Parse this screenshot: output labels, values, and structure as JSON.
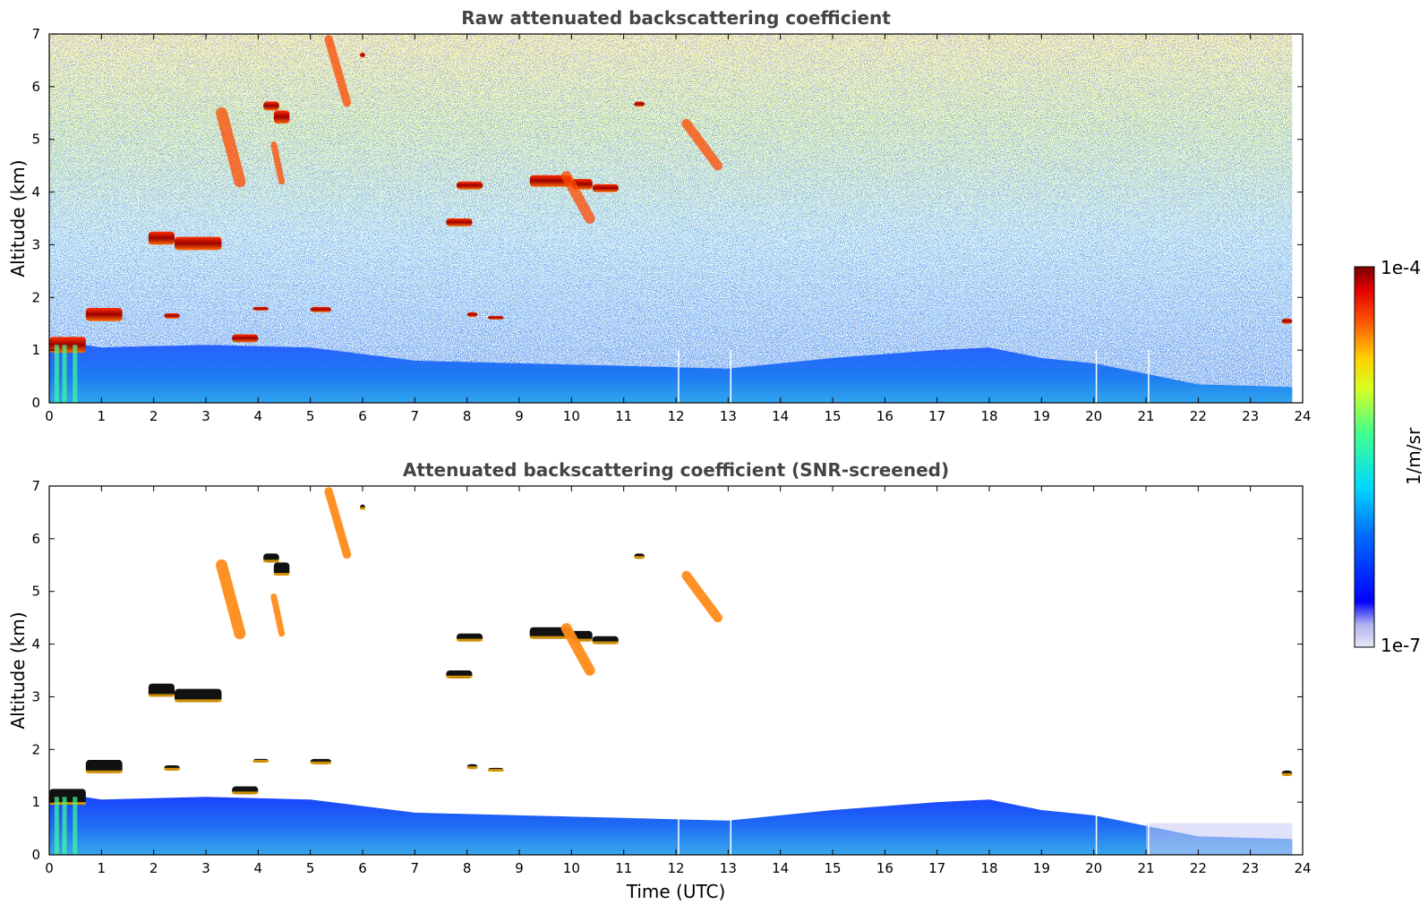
{
  "chart_data": [
    {
      "type": "heatmap",
      "title": "Raw attenuated backscattering coefficient",
      "xlabel": "",
      "ylabel": "Altitude (km)",
      "xlim": [
        0,
        24
      ],
      "ylim": [
        0,
        7
      ],
      "xticks": [
        "0",
        "1",
        "2",
        "3",
        "4",
        "5",
        "6",
        "7",
        "8",
        "9",
        "10",
        "11",
        "12",
        "13",
        "14",
        "15",
        "16",
        "17",
        "18",
        "19",
        "20",
        "21",
        "22",
        "23",
        "24"
      ],
      "yticks": [
        "0",
        "1",
        "2",
        "3",
        "4",
        "5",
        "6",
        "7"
      ],
      "screened": false,
      "data_end_hour": 23.8,
      "gaps_hours": [
        12.05,
        13.05,
        20.05,
        21.05
      ],
      "boundary_layer_top_km": [
        {
          "t": 0,
          "h": 1.2
        },
        {
          "t": 1,
          "h": 1.05
        },
        {
          "t": 3,
          "h": 1.1
        },
        {
          "t": 5,
          "h": 1.05
        },
        {
          "t": 7,
          "h": 0.8
        },
        {
          "t": 9,
          "h": 0.75
        },
        {
          "t": 11,
          "h": 0.7
        },
        {
          "t": 13,
          "h": 0.65
        },
        {
          "t": 15,
          "h": 0.85
        },
        {
          "t": 17,
          "h": 1.0
        },
        {
          "t": 18,
          "h": 1.05
        },
        {
          "t": 19,
          "h": 0.85
        },
        {
          "t": 20,
          "h": 0.75
        },
        {
          "t": 21,
          "h": 0.55
        },
        {
          "t": 22,
          "h": 0.35
        },
        {
          "t": 23.8,
          "h": 0.3
        }
      ],
      "clouds": [
        {
          "t0": 0.0,
          "t1": 0.7,
          "h0": 0.95,
          "h1": 1.25
        },
        {
          "t0": 0.7,
          "t1": 1.4,
          "h0": 1.55,
          "h1": 1.8
        },
        {
          "t0": 2.2,
          "t1": 2.5,
          "h0": 1.6,
          "h1": 1.7
        },
        {
          "t0": 3.5,
          "t1": 4.0,
          "h0": 1.15,
          "h1": 1.3
        },
        {
          "t0": 3.9,
          "t1": 4.2,
          "h0": 1.75,
          "h1": 1.82
        },
        {
          "t0": 5.0,
          "t1": 5.4,
          "h0": 1.72,
          "h1": 1.82
        },
        {
          "t0": 1.9,
          "t1": 2.4,
          "h0": 3.0,
          "h1": 3.25
        },
        {
          "t0": 2.4,
          "t1": 3.3,
          "h0": 2.9,
          "h1": 3.15
        },
        {
          "t0": 4.1,
          "t1": 4.4,
          "h0": 5.55,
          "h1": 5.72
        },
        {
          "t0": 4.3,
          "t1": 4.6,
          "h0": 5.3,
          "h1": 5.55
        },
        {
          "t0": 5.95,
          "t1": 6.05,
          "h0": 6.55,
          "h1": 6.65
        },
        {
          "t0": 7.8,
          "t1": 8.3,
          "h0": 4.05,
          "h1": 4.2
        },
        {
          "t0": 7.6,
          "t1": 8.1,
          "h0": 3.35,
          "h1": 3.5
        },
        {
          "t0": 8.0,
          "t1": 8.2,
          "h0": 1.63,
          "h1": 1.72
        },
        {
          "t0": 8.4,
          "t1": 8.7,
          "h0": 1.58,
          "h1": 1.65
        },
        {
          "t0": 9.2,
          "t1": 10.0,
          "h0": 4.1,
          "h1": 4.32
        },
        {
          "t0": 10.0,
          "t1": 10.4,
          "h0": 4.05,
          "h1": 4.25
        },
        {
          "t0": 10.4,
          "t1": 10.9,
          "h0": 4.0,
          "h1": 4.15
        },
        {
          "t0": 11.2,
          "t1": 11.4,
          "h0": 5.62,
          "h1": 5.72
        },
        {
          "t0": 23.6,
          "t1": 23.8,
          "h0": 1.5,
          "h1": 1.6
        }
      ],
      "streaks": [
        {
          "t0": 3.3,
          "h0": 5.5,
          "t1": 3.65,
          "h1": 4.2,
          "w": 0.22
        },
        {
          "t0": 5.35,
          "h0": 6.9,
          "t1": 5.7,
          "h1": 5.7,
          "w": 0.16
        },
        {
          "t0": 4.3,
          "h0": 4.9,
          "t1": 4.45,
          "h1": 4.2,
          "w": 0.12
        },
        {
          "t0": 9.9,
          "h0": 4.3,
          "t1": 10.35,
          "h1": 3.5,
          "w": 0.2
        },
        {
          "t0": 12.2,
          "h0": 5.3,
          "t1": 12.8,
          "h1": 4.5,
          "w": 0.18
        }
      ]
    },
    {
      "type": "heatmap",
      "title": "Attenuated backscattering coefficient (SNR-screened)",
      "xlabel": "Time (UTC)",
      "ylabel": "Altitude (km)",
      "xlim": [
        0,
        24
      ],
      "ylim": [
        0,
        7
      ],
      "xticks": [
        "0",
        "1",
        "2",
        "3",
        "4",
        "5",
        "6",
        "7",
        "8",
        "9",
        "10",
        "11",
        "12",
        "13",
        "14",
        "15",
        "16",
        "17",
        "18",
        "19",
        "20",
        "21",
        "22",
        "23",
        "24"
      ],
      "yticks": [
        "0",
        "1",
        "2",
        "3",
        "4",
        "5",
        "6",
        "7"
      ],
      "screened": true
    }
  ],
  "colorbar": {
    "label": "1/m/sr",
    "min_label": "1e-7",
    "max_label": "1e-4",
    "scale": "log"
  }
}
